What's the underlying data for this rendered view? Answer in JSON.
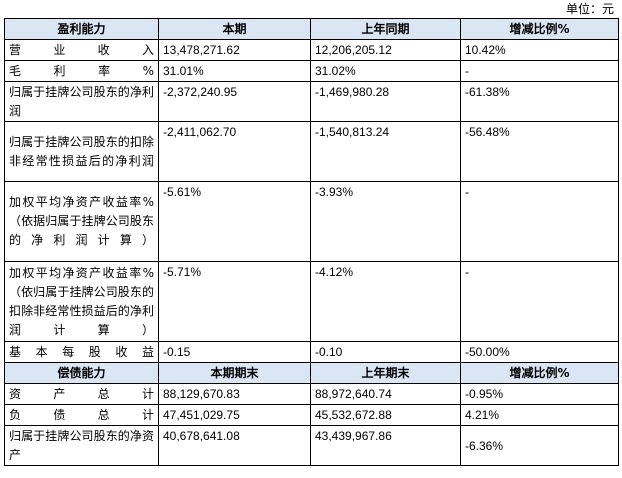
{
  "unit_label": "单位：元",
  "profit": {
    "headers": [
      "盈利能力",
      "本期",
      "上年同期",
      "增减比例%"
    ],
    "rows": [
      {
        "label": "营业收入",
        "current": "13,478,271.62",
        "prior": "12,206,205.12",
        "change": "10.42%"
      },
      {
        "label": "毛利率%",
        "current": "31.01%",
        "prior": "31.02%",
        "change": "-"
      },
      {
        "label": "归属于挂牌公司股东的净利润",
        "current": "-2,372,240.95",
        "prior": "-1,469,980.28",
        "change": "-61.38%"
      },
      {
        "label": "归属于挂牌公司股东的扣除非经常性损益后的净利润",
        "current": "-2,411,062.70",
        "prior": "-1,540,813.24",
        "change": "-56.48%"
      },
      {
        "label": "加权平均净资产收益率%（依据归属于挂牌公司股东的净利润计算）",
        "current": "-5.61%",
        "prior": "-3.93%",
        "change": "-"
      },
      {
        "label": "加权平均净资产收益率%（依归属于挂牌公司股东的扣除非经常性损益后的净利润计算）",
        "current": "-5.71%",
        "prior": "-4.12%",
        "change": "-"
      },
      {
        "label": "基本每股收益",
        "current": "-0.15",
        "prior": "-0.10",
        "change": "-50.00%"
      }
    ]
  },
  "solvency": {
    "headers": [
      "偿债能力",
      "本期期末",
      "上年期末",
      "增减比例%"
    ],
    "rows": [
      {
        "label": "资产总计",
        "current": "88,129,670.83",
        "prior": "88,972,640.74",
        "change": "-0.95%"
      },
      {
        "label": "负债总计",
        "current": "47,451,029.75",
        "prior": "45,532,672.88",
        "change": "4.21%"
      },
      {
        "label": "归属于挂牌公司股东的净资产",
        "current": "40,678,641.08",
        "prior": "43,439,967.86",
        "change": "-6.36%"
      }
    ]
  }
}
